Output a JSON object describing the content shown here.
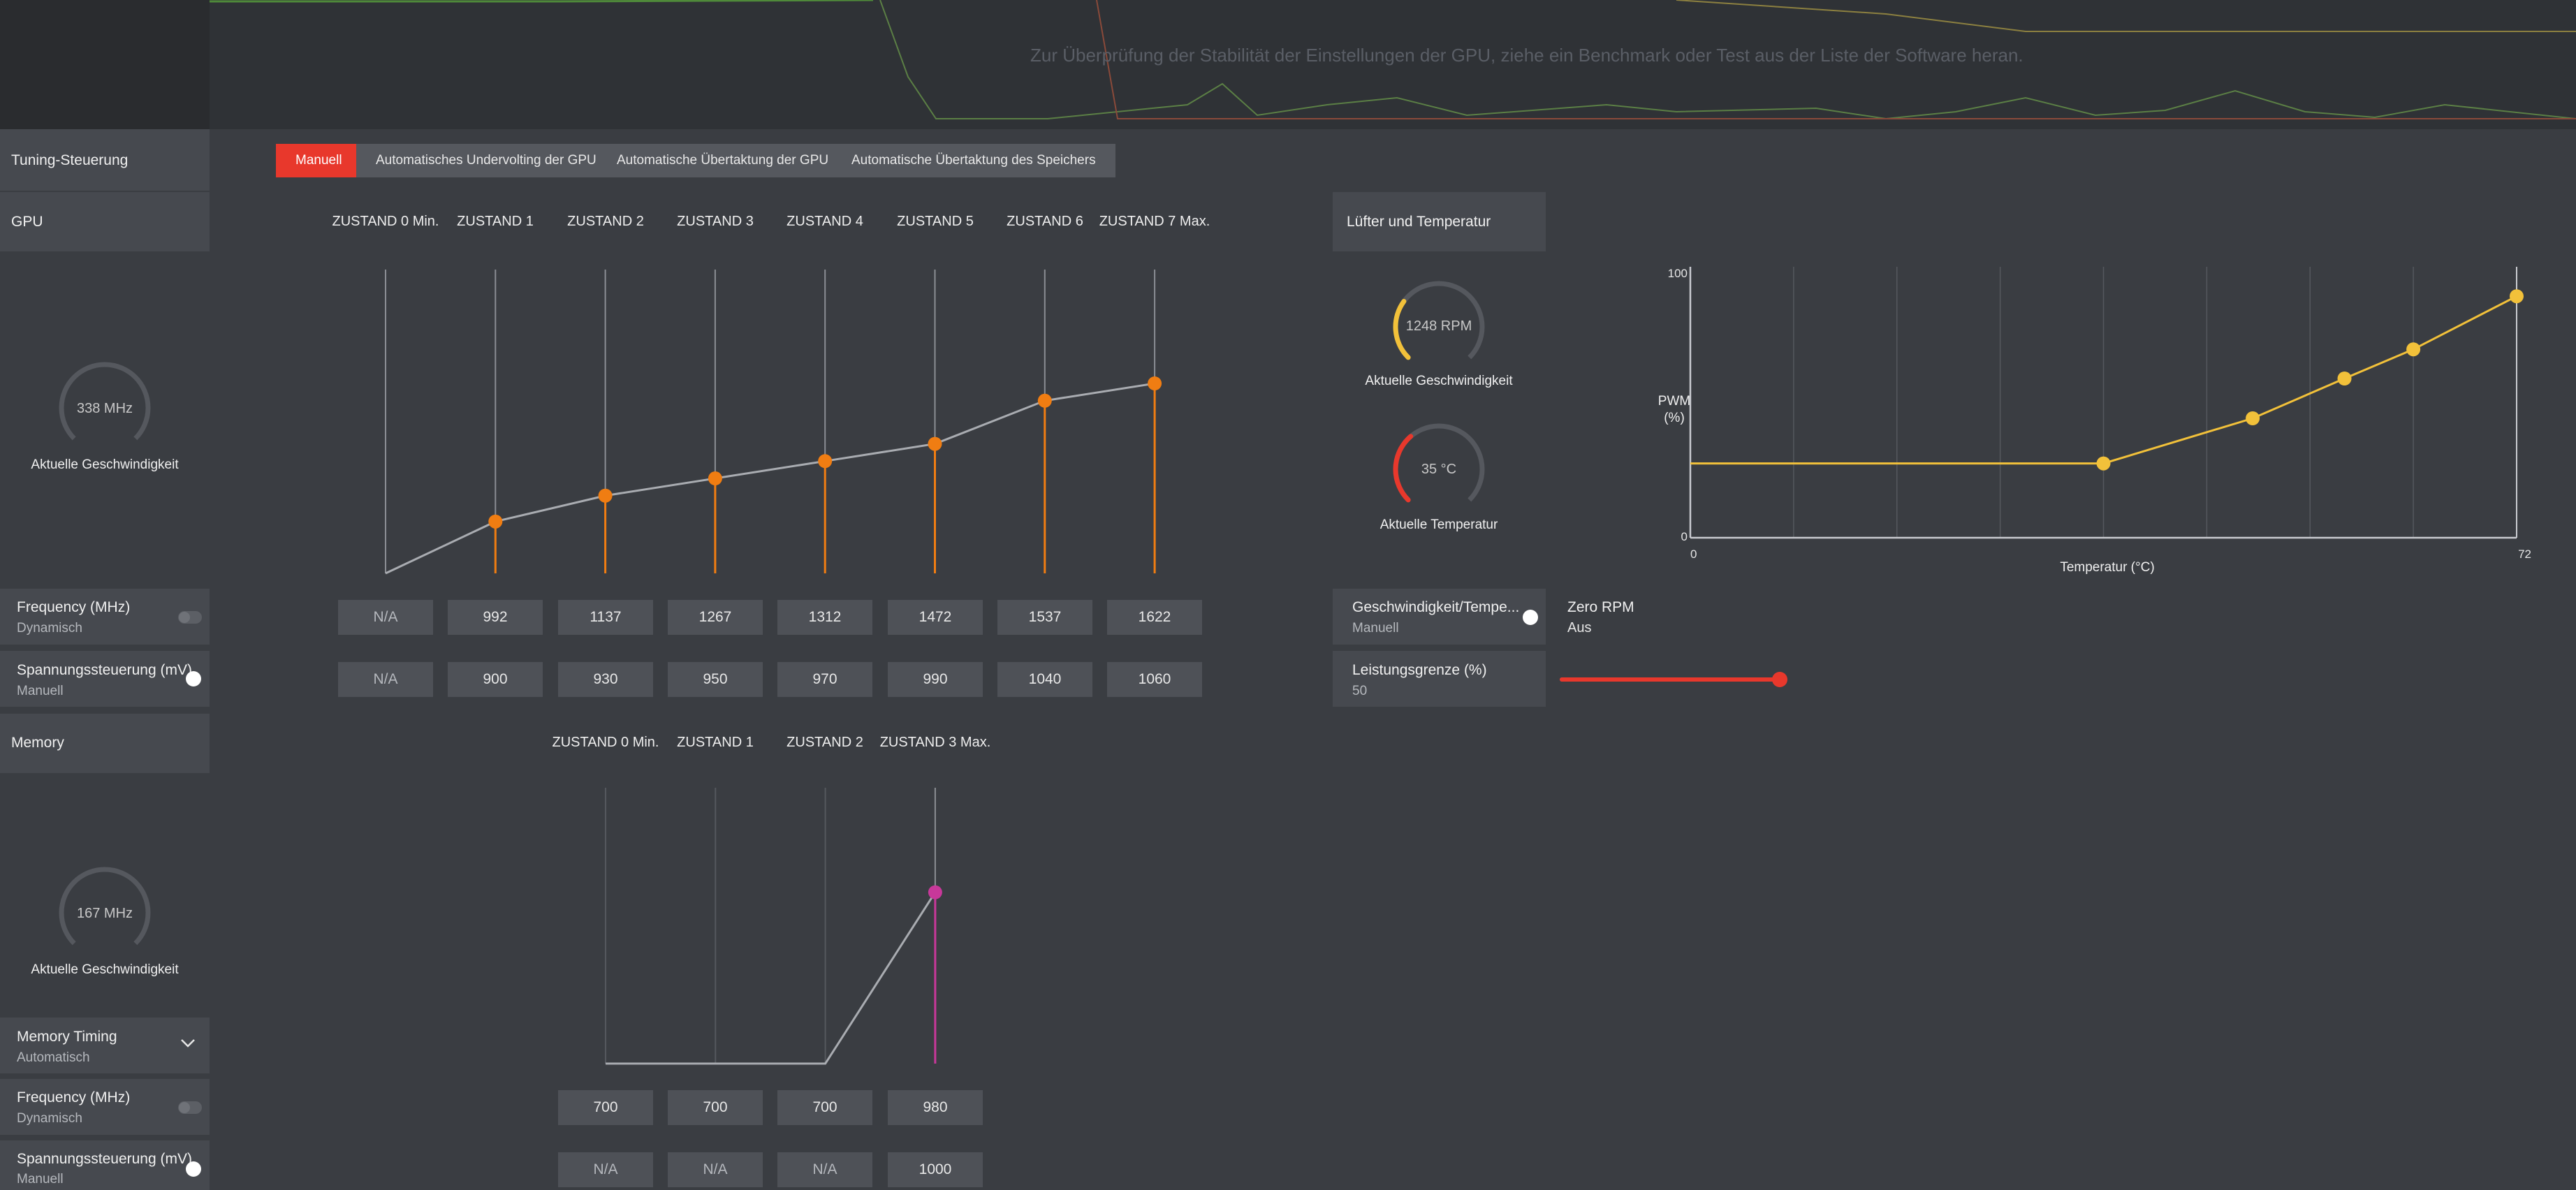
{
  "background_hint": {
    "line": "Zur Überprüfung der Stabilität der Einstellungen der GPU, ziehe ein Benchmark oder Test aus der Liste der Software heran."
  },
  "tuning": {
    "label": "Tuning-Steuerung",
    "tabs": [
      {
        "label": "Manuell",
        "active": true
      },
      {
        "label": "Automatisches Undervolting der GPU",
        "active": false
      },
      {
        "label": "Automatische Übertaktung der GPU",
        "active": false
      },
      {
        "label": "Automatische Übertaktung des Speichers",
        "active": false
      }
    ]
  },
  "gpu": {
    "label": "GPU",
    "states": [
      "ZUSTAND 0 Min.",
      "ZUSTAND 1",
      "ZUSTAND 2",
      "ZUSTAND 3",
      "ZUSTAND 4",
      "ZUSTAND 5",
      "ZUSTAND 6",
      "ZUSTAND 7 Max."
    ],
    "gauge": {
      "value": "338 MHz",
      "caption": "Aktuelle Geschwindigkeit",
      "fraction": 0.0
    },
    "frequency": {
      "label": "Frequency (MHz)",
      "mode": "Dynamisch",
      "values": [
        "N/A",
        "992",
        "1137",
        "1267",
        "1312",
        "1472",
        "1537",
        "1622"
      ]
    },
    "voltage": {
      "label": "Spannungssteuerung (mV)",
      "mode": "Manuell",
      "values": [
        "N/A",
        "900",
        "930",
        "950",
        "970",
        "990",
        "1040",
        "1060"
      ]
    },
    "curve_color": "#f07d12"
  },
  "memory": {
    "label": "Memory",
    "states": [
      "ZUSTAND 0 Min.",
      "ZUSTAND 1",
      "ZUSTAND 2",
      "ZUSTAND 3 Max."
    ],
    "gauge": {
      "value": "167 MHz",
      "caption": "Aktuelle Geschwindigkeit",
      "fraction": 0.0
    },
    "timing": {
      "label": "Memory Timing",
      "mode": "Automatisch"
    },
    "frequency": {
      "label": "Frequency (MHz)",
      "mode": "Dynamisch",
      "values": [
        "700",
        "700",
        "700",
        "980"
      ]
    },
    "voltage": {
      "label": "Spannungssteuerung (mV)",
      "mode": "Manuell",
      "values": [
        "N/A",
        "N/A",
        "N/A",
        "1000"
      ]
    },
    "curve_color": "#c8389a"
  },
  "fan": {
    "label": "Lüfter und Temperatur",
    "speed_gauge": {
      "value": "1248 RPM",
      "caption": "Aktuelle Geschwindigkeit",
      "fraction": 0.3,
      "color": "#f2c13a"
    },
    "temp_gauge": {
      "value": "35 °C",
      "caption": "Aktuelle Temperatur",
      "fraction": 0.35,
      "color": "#e8382c"
    },
    "chart": {
      "ylabel_line1": "PWM",
      "ylabel_line2": "(%)",
      "xlabel": "Temperatur (°C)",
      "y_top": "100",
      "y_bottom": "0",
      "x_left": "0",
      "x_right": "72"
    },
    "speed_temp": {
      "label": "Geschwindigkeit/Tempe...",
      "mode": "Manuell"
    },
    "zero_rpm": {
      "label": "Zero RPM",
      "value": "Aus"
    },
    "power_limit": {
      "label": "Leistungsgrenze (%)",
      "value": "50",
      "fraction": 1.0
    },
    "curve_color": "#f2c13a"
  },
  "colors": {
    "accent": "#e8382c",
    "panel": "#46494f",
    "box": "#4e5157"
  }
}
